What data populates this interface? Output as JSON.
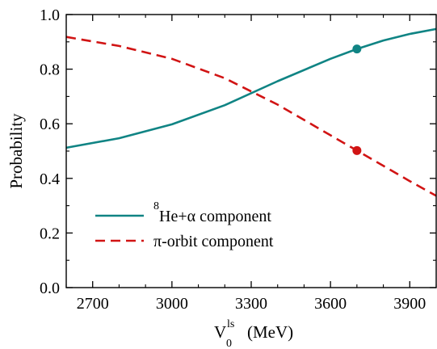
{
  "chart_data": {
    "type": "line",
    "xlabel": {
      "main": "V",
      "sub": "0",
      "sup": "ls",
      "unit": "(MeV)"
    },
    "ylabel": "Probability",
    "xlim": [
      2600,
      4000
    ],
    "ylim": [
      0.0,
      1.0
    ],
    "x_ticks": [
      2700,
      3000,
      3300,
      3600,
      3900
    ],
    "x_tick_labels": [
      "2700",
      "3000",
      "3300",
      "3600",
      "3900"
    ],
    "x_minor_step": 100,
    "y_ticks": [
      0.0,
      0.2,
      0.4,
      0.6,
      0.8,
      1.0
    ],
    "y_tick_labels": [
      "0.0",
      "0.2",
      "0.4",
      "0.6",
      "0.8",
      "1.0"
    ],
    "y_minor_step": 0.1,
    "grid": false,
    "legend_position": "bottom-left",
    "series": [
      {
        "name_prefix_sup": "8",
        "name": "He+α component",
        "color": "#108484",
        "dash": "solid",
        "x": [
          2600,
          2800,
          3000,
          3200,
          3400,
          3600,
          3700,
          3800,
          3900,
          4000
        ],
        "y": [
          0.512,
          0.547,
          0.598,
          0.668,
          0.756,
          0.838,
          0.874,
          0.905,
          0.929,
          0.947
        ],
        "marker": {
          "x": 3700,
          "y": 0.874
        }
      },
      {
        "name": "π-orbit component",
        "color": "#d11414",
        "dash": "dashed",
        "x": [
          2600,
          2800,
          3000,
          3200,
          3400,
          3600,
          3700,
          3800,
          3900,
          4000
        ],
        "y": [
          0.918,
          0.885,
          0.838,
          0.767,
          0.67,
          0.558,
          0.502,
          0.446,
          0.39,
          0.336
        ],
        "marker": {
          "x": 3700,
          "y": 0.502
        }
      }
    ]
  }
}
